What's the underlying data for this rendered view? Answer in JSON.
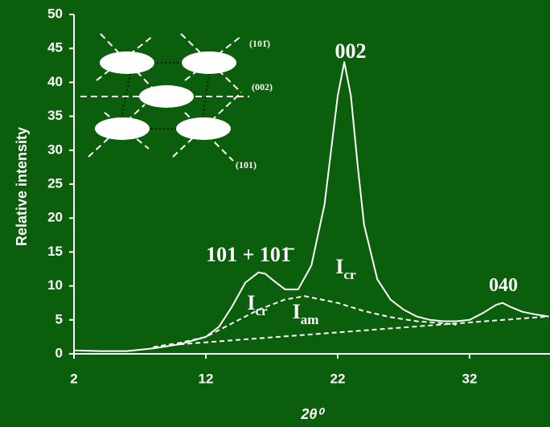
{
  "chart_data": {
    "type": "line",
    "xlabel": "2θ⁰",
    "ylabel": "Relative intensity",
    "xlim": [
      2,
      38
    ],
    "ylim": [
      0,
      50
    ],
    "xticks": [
      2,
      12,
      22,
      32
    ],
    "yticks": [
      0,
      5,
      10,
      15,
      20,
      25,
      30,
      35,
      40,
      45,
      50
    ],
    "background": "#0b5e0b",
    "series": [
      {
        "color": "#ffffff",
        "dashed": false,
        "x": [
          2,
          4,
          6,
          8,
          10,
          12,
          13,
          14,
          15,
          16,
          16.5,
          17,
          18,
          19,
          20,
          21,
          21.5,
          22,
          22.5,
          23,
          23.5,
          24,
          25,
          26,
          27,
          28,
          29,
          30,
          31,
          32,
          33,
          34,
          34.5,
          35,
          36,
          37,
          38
        ],
        "values": [
          0.5,
          0.4,
          0.4,
          0.8,
          1.4,
          2.5,
          4,
          7,
          10.5,
          12,
          11.8,
          11,
          9.5,
          9.5,
          13,
          22,
          30,
          38,
          43,
          38,
          28,
          19,
          11,
          8,
          6.5,
          5.5,
          5,
          4.8,
          4.8,
          5,
          6,
          7.2,
          7.5,
          7,
          6.2,
          5.8,
          5.5
        ]
      },
      {
        "color": "#ffffff",
        "dashed": true,
        "x": [
          8,
          10,
          12,
          14,
          16,
          18,
          19.5,
          22,
          24,
          26,
          28,
          30,
          31
        ],
        "values": [
          1,
          1.6,
          2.5,
          4.5,
          6.5,
          8,
          8.5,
          7.5,
          6.3,
          5.4,
          4.8,
          4.5,
          4.3
        ]
      },
      {
        "color": "#ffffff",
        "dashed": true,
        "x": [
          10,
          38
        ],
        "values": [
          1.4,
          5.5
        ]
      }
    ],
    "annotations": [
      {
        "text": "002"
      },
      {
        "text": "101 + 101̄"
      },
      {
        "text": "040"
      },
      {
        "text": "I",
        "sub": "cr"
      },
      {
        "text": "I",
        "sub": "cr"
      },
      {
        "text": "I",
        "sub": "am"
      }
    ],
    "inset_labels": [
      "(101̄)",
      "(002)",
      "(101)"
    ]
  }
}
